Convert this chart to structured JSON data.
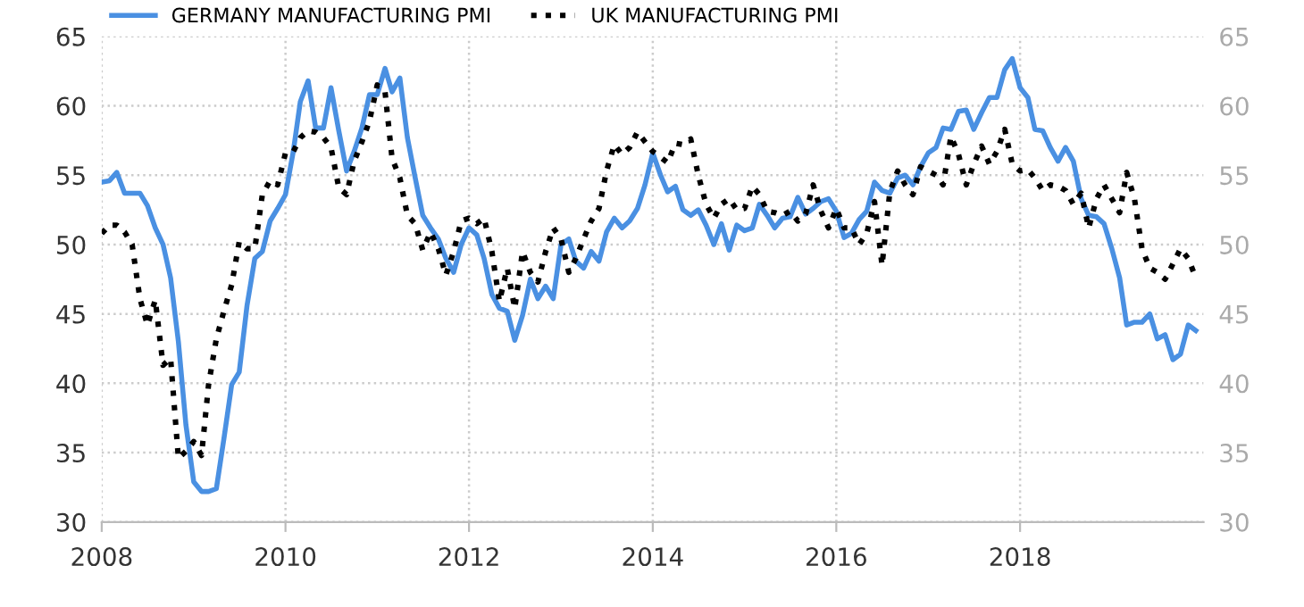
{
  "chart_data": {
    "type": "line",
    "x": [
      "2008-01",
      "2008-02",
      "2008-03",
      "2008-04",
      "2008-05",
      "2008-06",
      "2008-07",
      "2008-08",
      "2008-09",
      "2008-10",
      "2008-11",
      "2008-12",
      "2009-01",
      "2009-02",
      "2009-03",
      "2009-04",
      "2009-05",
      "2009-06",
      "2009-07",
      "2009-08",
      "2009-09",
      "2009-10",
      "2009-11",
      "2009-12",
      "2010-01",
      "2010-02",
      "2010-03",
      "2010-04",
      "2010-05",
      "2010-06",
      "2010-07",
      "2010-08",
      "2010-09",
      "2010-10",
      "2010-11",
      "2010-12",
      "2011-01",
      "2011-02",
      "2011-03",
      "2011-04",
      "2011-05",
      "2011-06",
      "2011-07",
      "2011-08",
      "2011-09",
      "2011-10",
      "2011-11",
      "2011-12",
      "2012-01",
      "2012-02",
      "2012-03",
      "2012-04",
      "2012-05",
      "2012-06",
      "2012-07",
      "2012-08",
      "2012-09",
      "2012-10",
      "2012-11",
      "2012-12",
      "2013-01",
      "2013-02",
      "2013-03",
      "2013-04",
      "2013-05",
      "2013-06",
      "2013-07",
      "2013-08",
      "2013-09",
      "2013-10",
      "2013-11",
      "2013-12",
      "2014-01",
      "2014-02",
      "2014-03",
      "2014-04",
      "2014-05",
      "2014-06",
      "2014-07",
      "2014-08",
      "2014-09",
      "2014-10",
      "2014-11",
      "2014-12",
      "2015-01",
      "2015-02",
      "2015-03",
      "2015-04",
      "2015-05",
      "2015-06",
      "2015-07",
      "2015-08",
      "2015-09",
      "2015-10",
      "2015-11",
      "2015-12",
      "2016-01",
      "2016-02",
      "2016-03",
      "2016-04",
      "2016-05",
      "2016-06",
      "2016-07",
      "2016-08",
      "2016-09",
      "2016-10",
      "2016-11",
      "2016-12",
      "2017-01",
      "2017-02",
      "2017-03",
      "2017-04",
      "2017-05",
      "2017-06",
      "2017-07",
      "2017-08",
      "2017-09",
      "2017-10",
      "2017-11",
      "2017-12",
      "2018-01",
      "2018-02",
      "2018-03",
      "2018-04",
      "2018-05",
      "2018-06",
      "2018-07",
      "2018-08",
      "2018-09",
      "2018-10",
      "2018-11",
      "2018-12",
      "2019-01",
      "2019-02",
      "2019-03",
      "2019-04",
      "2019-05",
      "2019-06",
      "2019-07",
      "2019-08",
      "2019-09",
      "2019-10",
      "2019-11",
      "2019-12"
    ],
    "series": [
      {
        "name": "GERMANY MANUFACTURING PMI",
        "color": "#4a90e2",
        "line_style": "solid",
        "values": [
          54.5,
          54.6,
          55.2,
          53.7,
          53.7,
          53.7,
          52.8,
          51.2,
          50.0,
          47.6,
          43.0,
          37.0,
          32.9,
          32.2,
          32.2,
          32.4,
          36.0,
          39.9,
          40.8,
          45.6,
          49.0,
          49.5,
          51.7,
          52.6,
          53.6,
          56.7,
          60.3,
          61.8,
          58.4,
          58.4,
          61.3,
          58.2,
          55.3,
          56.7,
          58.4,
          60.8,
          60.8,
          62.7,
          61.0,
          62.0,
          57.7,
          54.8,
          52.1,
          51.2,
          50.4,
          49.0,
          48.0,
          50.0,
          51.2,
          50.7,
          49.0,
          46.4,
          45.4,
          45.2,
          43.1,
          44.9,
          47.5,
          46.1,
          47.0,
          46.1,
          50.0,
          50.4,
          48.8,
          48.3,
          49.5,
          48.8,
          50.9,
          51.9,
          51.2,
          51.7,
          52.6,
          54.3,
          56.6,
          55.0,
          53.8,
          54.2,
          52.5,
          52.1,
          52.5,
          51.4,
          50.0,
          51.5,
          49.6,
          51.4,
          51.0,
          51.2,
          52.9,
          52.1,
          51.2,
          51.9,
          52.0,
          53.4,
          52.2,
          52.6,
          53.1,
          53.3,
          52.4,
          50.5,
          50.8,
          51.8,
          52.4,
          54.5,
          53.9,
          53.7,
          54.8,
          55.0,
          54.3,
          55.6,
          56.6,
          57.0,
          58.4,
          58.3,
          59.6,
          59.7,
          58.3,
          59.5,
          60.6,
          60.6,
          62.6,
          63.4,
          61.3,
          60.6,
          58.3,
          58.2,
          57.0,
          56.0,
          57.0,
          56.0,
          53.3,
          52.1,
          52.0,
          51.5,
          49.7,
          47.6,
          44.2,
          44.4,
          44.4,
          45.0,
          43.2,
          43.5,
          41.7,
          42.1,
          44.2,
          43.8
        ]
      },
      {
        "name": "UK MANUFACTURING PMI",
        "color": "#000000",
        "line_style": "dotted",
        "values": [
          50.8,
          51.4,
          51.4,
          50.9,
          50.0,
          46.1,
          44.2,
          46.0,
          41.3,
          41.8,
          34.6,
          35.1,
          35.8,
          34.8,
          39.9,
          43.2,
          45.2,
          47.1,
          50.2,
          49.7,
          49.7,
          53.6,
          54.6,
          54.3,
          56.6,
          56.7,
          57.7,
          58.2,
          58.1,
          57.7,
          57.0,
          54.1,
          53.6,
          56.0,
          57.4,
          58.9,
          61.5,
          61.0,
          56.2,
          54.8,
          52.1,
          51.5,
          49.6,
          50.9,
          49.7,
          47.8,
          49.5,
          51.7,
          51.9,
          51.5,
          51.9,
          49.5,
          45.9,
          48.3,
          45.4,
          49.5,
          48.0,
          47.3,
          49.5,
          51.2,
          50.4,
          48.0,
          49.0,
          50.4,
          51.7,
          52.6,
          55.3,
          57.2,
          56.5,
          57.0,
          58.1,
          57.4,
          56.7,
          56.3,
          55.9,
          57.3,
          57.2,
          57.6,
          55.0,
          52.9,
          51.9,
          52.9,
          53.3,
          52.5,
          52.6,
          54.2,
          53.6,
          52.4,
          52.3,
          52.1,
          52.4,
          51.7,
          52.2,
          54.3,
          52.4,
          51.2,
          52.6,
          51.2,
          51.2,
          50.0,
          50.8,
          53.1,
          48.5,
          53.8,
          55.3,
          54.3,
          53.6,
          55.6,
          55.3,
          55.0,
          54.3,
          57.8,
          56.5,
          54.3,
          55.8,
          57.1,
          55.8,
          56.7,
          58.3,
          55.8,
          55.3,
          55.4,
          54.8,
          53.9,
          54.3,
          54.2,
          53.9,
          52.9,
          53.7,
          51.2,
          53.3,
          54.3,
          53.3,
          52.3,
          55.2,
          53.3,
          49.7,
          48.3,
          48.0,
          47.5,
          48.6,
          49.7,
          49.0,
          47.6
        ]
      }
    ],
    "xlim": [
      "2008-01",
      "2020-01"
    ],
    "xticks": [
      "2008",
      "2010",
      "2012",
      "2014",
      "2016",
      "2018"
    ],
    "ylim": [
      30,
      65
    ],
    "yticks": [
      30,
      35,
      40,
      45,
      50,
      55,
      60,
      65
    ],
    "y2lim": [
      30,
      65
    ],
    "y2ticks": [
      30,
      35,
      40,
      45,
      50,
      55,
      60,
      65
    ],
    "grid": true,
    "legend": "top left",
    "marker": "none"
  }
}
